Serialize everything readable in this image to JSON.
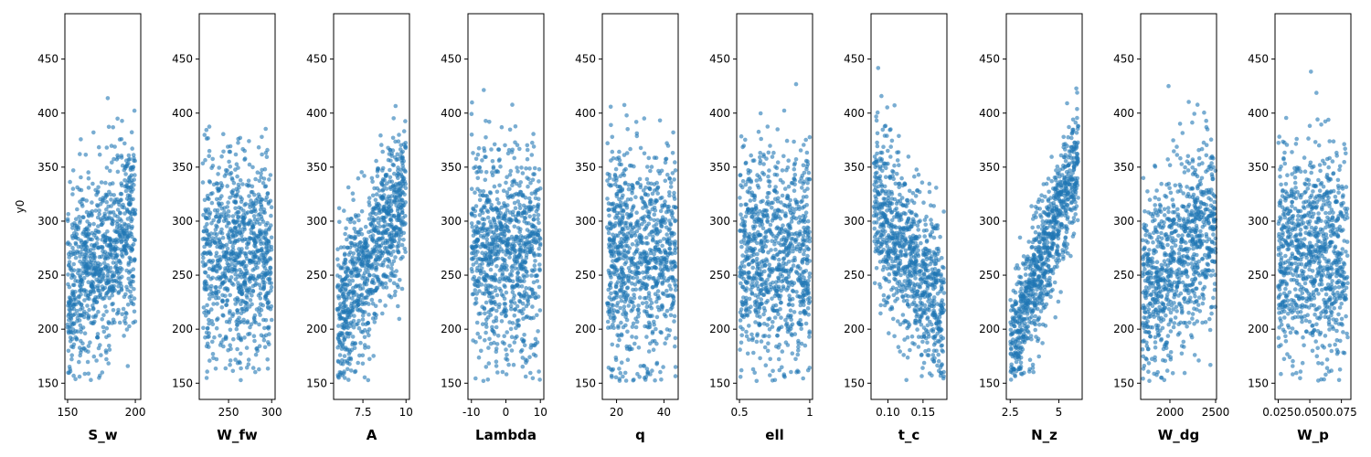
{
  "chart_data": [
    {
      "type": "scatter",
      "xlabel": "S_w",
      "ylabel": "y0",
      "xlim": [
        148,
        204
      ],
      "ylim": [
        135,
        492
      ],
      "xticks": [
        150,
        200
      ],
      "yticks": [
        150,
        200,
        250,
        300,
        350,
        400,
        450
      ],
      "color": "#1f77b4",
      "trend": "positive_weak",
      "x_range": [
        150,
        200
      ],
      "y_range": [
        152,
        476
      ]
    },
    {
      "type": "scatter",
      "xlabel": "W_fw",
      "ylabel": "",
      "xlim": [
        216,
        304
      ],
      "ylim": [
        135,
        492
      ],
      "xticks": [
        250,
        300
      ],
      "yticks": [
        150,
        200,
        250,
        300,
        350,
        400,
        450
      ],
      "color": "#1f77b4",
      "trend": "none",
      "x_range": [
        220,
        300
      ],
      "y_range": [
        152,
        476
      ]
    },
    {
      "type": "scatter",
      "xlabel": "A",
      "ylabel": "",
      "xlim": [
        5.8,
        10.2
      ],
      "ylim": [
        135,
        492
      ],
      "xticks": [
        7.5,
        10.0
      ],
      "yticks": [
        150,
        200,
        250,
        300,
        350,
        400,
        450
      ],
      "color": "#1f77b4",
      "trend": "positive_strong",
      "x_range": [
        6,
        10
      ],
      "y_range": [
        152,
        476
      ]
    },
    {
      "type": "scatter",
      "xlabel": "Lambda",
      "ylabel": "",
      "xlim": [
        -11,
        11
      ],
      "ylim": [
        135,
        492
      ],
      "xticks": [
        -10,
        0,
        10
      ],
      "yticks": [
        150,
        200,
        250,
        300,
        350,
        400,
        450
      ],
      "color": "#1f77b4",
      "trend": "none",
      "x_range": [
        -10,
        10
      ],
      "y_range": [
        152,
        476
      ]
    },
    {
      "type": "scatter",
      "xlabel": "q",
      "ylabel": "",
      "xlim": [
        14,
        46
      ],
      "ylim": [
        135,
        492
      ],
      "xticks": [
        20,
        40
      ],
      "yticks": [
        150,
        200,
        250,
        300,
        350,
        400,
        450
      ],
      "color": "#1f77b4",
      "trend": "none",
      "x_range": [
        16,
        45
      ],
      "y_range": [
        152,
        476
      ]
    },
    {
      "type": "scatter",
      "xlabel": "ell",
      "ylabel": "",
      "xlim": [
        0.48,
        1.02
      ],
      "ylim": [
        135,
        492
      ],
      "xticks": [
        0.5,
        1.0
      ],
      "yticks": [
        150,
        200,
        250,
        300,
        350,
        400,
        450
      ],
      "color": "#1f77b4",
      "trend": "none",
      "x_range": [
        0.5,
        1.0
      ],
      "y_range": [
        152,
        476
      ]
    },
    {
      "type": "scatter",
      "xlabel": "t_c",
      "ylabel": "",
      "xlim": [
        0.076,
        0.184
      ],
      "ylim": [
        135,
        492
      ],
      "xticks": [
        0.1,
        0.15
      ],
      "xticklabels": [
        "0.10",
        "0.15"
      ],
      "yticks": [
        150,
        200,
        250,
        300,
        350,
        400,
        450
      ],
      "color": "#1f77b4",
      "trend": "negative",
      "x_range": [
        0.08,
        0.18
      ],
      "y_range": [
        152,
        476
      ]
    },
    {
      "type": "scatter",
      "xlabel": "N_z",
      "ylabel": "",
      "xlim": [
        2.3,
        6.2
      ],
      "ylim": [
        135,
        492
      ],
      "xticks": [
        2.5,
        5.0
      ],
      "yticks": [
        150,
        200,
        250,
        300,
        350,
        400,
        450
      ],
      "color": "#1f77b4",
      "trend": "positive_strongest",
      "x_range": [
        2.5,
        6.0
      ],
      "y_range": [
        152,
        476
      ]
    },
    {
      "type": "scatter",
      "xlabel": "W_dg",
      "ylabel": "",
      "xlim": [
        1680,
        2510
      ],
      "ylim": [
        135,
        492
      ],
      "xticks": [
        2000,
        2500
      ],
      "yticks": [
        150,
        200,
        250,
        300,
        350,
        400,
        450
      ],
      "color": "#1f77b4",
      "trend": "positive_weak",
      "x_range": [
        1700,
        2500
      ],
      "y_range": [
        152,
        476
      ]
    },
    {
      "type": "scatter",
      "xlabel": "W_p",
      "ylabel": "",
      "xlim": [
        0.0225,
        0.0825
      ],
      "ylim": [
        135,
        492
      ],
      "xticks": [
        0.025,
        0.05,
        0.075
      ],
      "xticklabels": [
        "0.025",
        "0.050",
        "0.075"
      ],
      "yticks": [
        150,
        200,
        250,
        300,
        350,
        400,
        450
      ],
      "color": "#1f77b4",
      "trend": "none",
      "x_range": [
        0.025,
        0.08
      ],
      "y_range": [
        152,
        476
      ]
    }
  ]
}
